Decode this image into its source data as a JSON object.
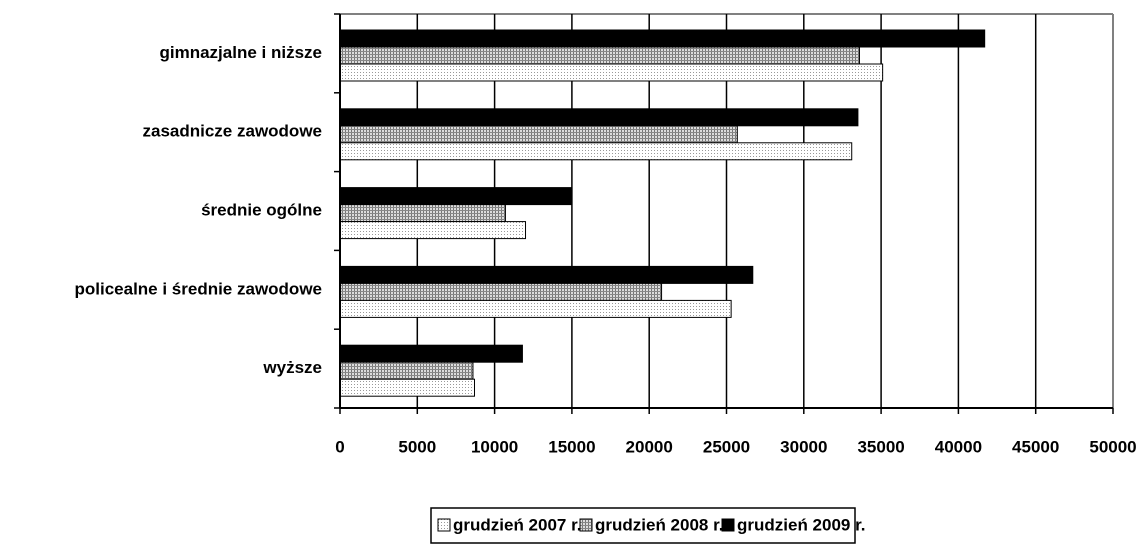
{
  "chart_data": {
    "type": "barh",
    "categories": [
      "gimnazjalne i niższe",
      "zasadnicze zawodowe",
      "średnie ogólne",
      "policealne i średnie zawodowe",
      "wyższe"
    ],
    "series": [
      {
        "name": "grudzień 2007 r.",
        "color": "#d9d9d9",
        "pattern": "dots",
        "values": [
          35100,
          33100,
          12000,
          25300,
          8700
        ]
      },
      {
        "name": "grudzień 2008 r.",
        "color": "#a6a6a6",
        "pattern": "crosshatch",
        "values": [
          33600,
          25700,
          10700,
          20800,
          8600
        ]
      },
      {
        "name": "grudzień 2009 r.",
        "color": "#000000",
        "pattern": "solid",
        "values": [
          41700,
          33500,
          14950,
          26700,
          11800
        ]
      }
    ],
    "xlim": [
      0,
      50000
    ],
    "xticks": [
      0,
      5000,
      10000,
      15000,
      20000,
      25000,
      30000,
      35000,
      40000,
      45000,
      50000
    ],
    "grid": true,
    "legend": "bottom"
  }
}
